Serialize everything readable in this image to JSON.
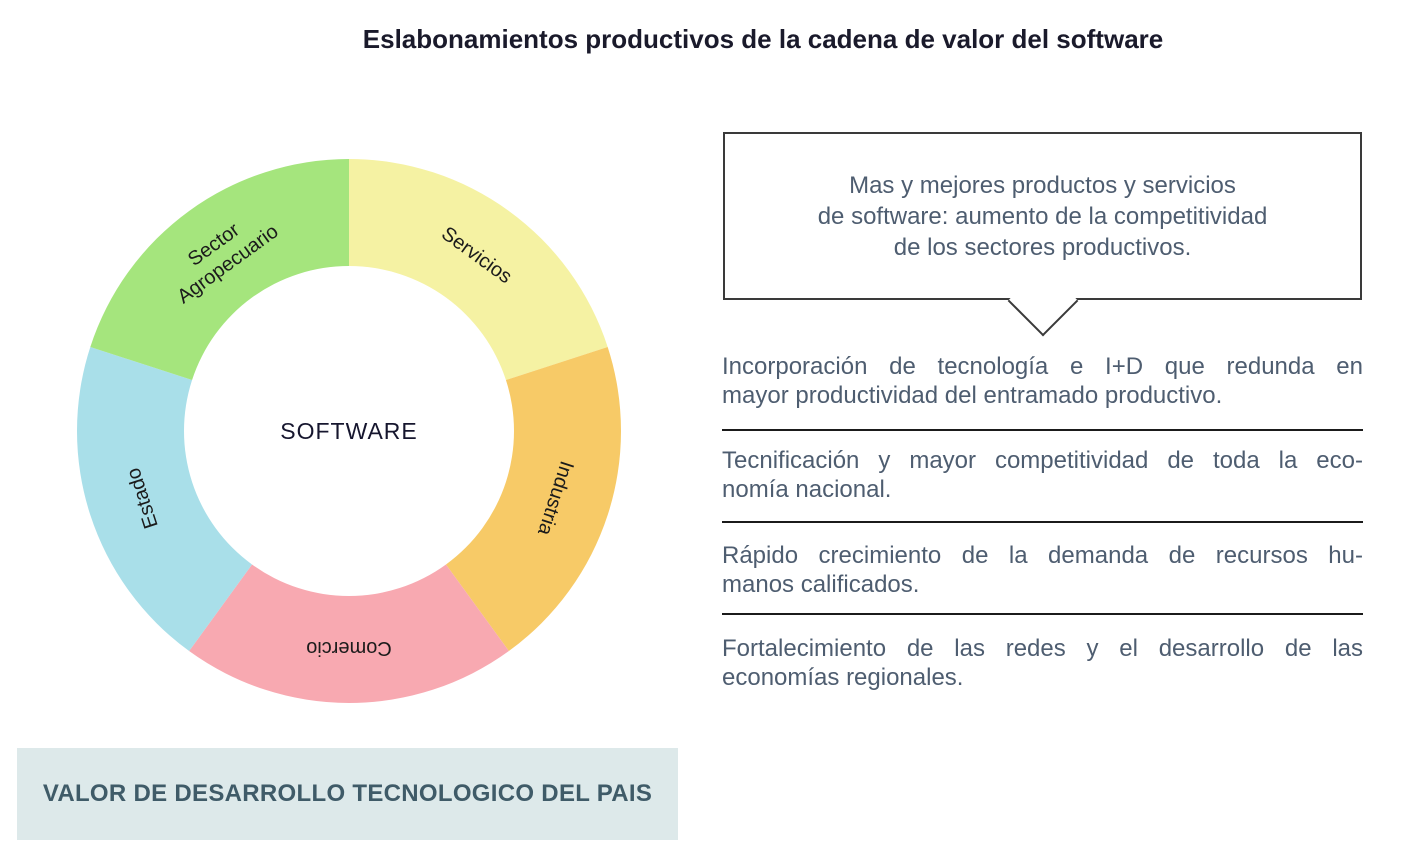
{
  "title": "Eslabonamientos productivos de la cadena de valor del software",
  "colors": {
    "title": "#1a1a2b",
    "text_slate": "#4e5d70",
    "rule": "#1b1b1b",
    "callout_border": "#3a3a3a",
    "footer_bg": "#dde9ea",
    "footer_text": "#3f5b68",
    "donut_label": "#1b1b1b",
    "center_label": "#16162e"
  },
  "donut": {
    "type": "donut",
    "center_label": "SOFTWARE",
    "outer_radius": 272,
    "inner_radius": 165,
    "label_radius": 218,
    "segments": [
      {
        "label": "Servicios",
        "lines": [
          "Servicios"
        ],
        "color": "#f5f2a3",
        "start": 0,
        "end": 72
      },
      {
        "label": "Industria",
        "lines": [
          "Industria"
        ],
        "color": "#f7ca67",
        "start": 72,
        "end": 144
      },
      {
        "label": "Comercio",
        "lines": [
          "Comercio"
        ],
        "color": "#f8a9b1",
        "start": 144,
        "end": 216
      },
      {
        "label": "Estado",
        "lines": [
          "Estado"
        ],
        "color": "#a9dfe9",
        "start": 216,
        "end": 288
      },
      {
        "label": "Sector Agropecuario",
        "lines": [
          "Sector",
          "Agropecuario"
        ],
        "color": "#a5e57d",
        "start": 288,
        "end": 360
      }
    ]
  },
  "callout": {
    "text": "Mas y mejores productos y servicios de software: aumento de la competitividad de los sectores productivos.",
    "lines": [
      "Mas y mejores productos y servicios",
      "de software: aumento de la competitividad",
      "de los sectores productivos."
    ]
  },
  "benefits": [
    {
      "text": "Incorporación de tecnología e I+D que redunda en mayor productividad del entramado productivo.",
      "lines": [
        "Incorporación de tecnología e I+D que redunda en",
        "mayor productividad del entramado productivo."
      ]
    },
    {
      "text": "Tecnificación y mayor competitividad de toda la economía nacional.",
      "lines": [
        "Tecnificación y mayor competitividad de toda la eco-",
        "nomía nacional."
      ]
    },
    {
      "text": "Rápido crecimiento de la demanda de recursos humanos calificados.",
      "lines": [
        "Rápido crecimiento de la demanda de recursos hu-",
        "manos calificados."
      ]
    },
    {
      "text": "Fortalecimiento de las redes y el desarrollo de las economías regionales.",
      "lines": [
        "Fortalecimiento de las redes y el desarrollo de las",
        "economías regionales."
      ]
    }
  ],
  "footer_box": {
    "label": "VALOR DE DESARROLLO TECNOLOGICO DEL PAIS"
  }
}
